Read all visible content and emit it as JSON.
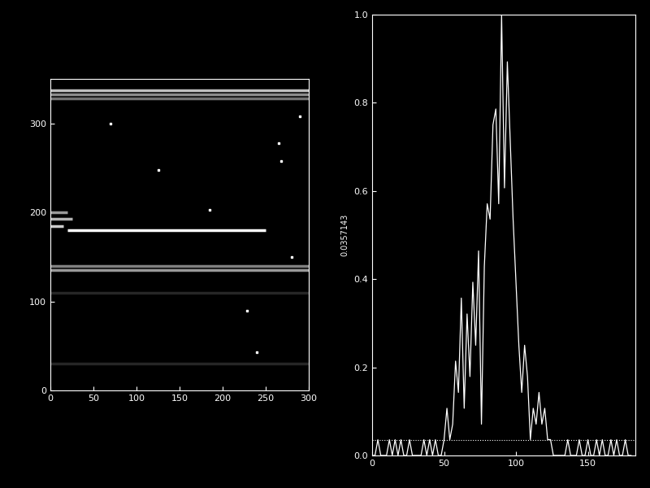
{
  "chart_data": [
    {
      "type": "image",
      "xlim": [
        0,
        300
      ],
      "xticks": [
        0,
        50,
        100,
        150,
        200,
        250,
        300
      ],
      "ylim": [
        0,
        350
      ],
      "yticks": [
        0,
        100,
        200,
        300
      ],
      "bands": [
        {
          "y": 337,
          "x0": 0,
          "x1": 300,
          "intensity": 0.75
        },
        {
          "y": 333,
          "x0": 0,
          "x1": 300,
          "intensity": 0.55
        },
        {
          "y": 328,
          "x0": 0,
          "x1": 300,
          "intensity": 0.45
        },
        {
          "y": 200,
          "x0": 0,
          "x1": 20,
          "intensity": 0.6
        },
        {
          "y": 193,
          "x0": 0,
          "x1": 25,
          "intensity": 0.7
        },
        {
          "y": 185,
          "x0": 0,
          "x1": 15,
          "intensity": 0.8
        },
        {
          "y": 180,
          "x0": 20,
          "x1": 250,
          "intensity": 1.0
        },
        {
          "y": 140,
          "x0": 0,
          "x1": 300,
          "intensity": 0.5
        },
        {
          "y": 135,
          "x0": 0,
          "x1": 300,
          "intensity": 0.6
        },
        {
          "y": 110,
          "x0": 0,
          "x1": 300,
          "intensity": 0.15
        },
        {
          "y": 30,
          "x0": 0,
          "x1": 300,
          "intensity": 0.15
        }
      ],
      "spots": [
        {
          "x": 265,
          "y": 278
        },
        {
          "x": 268,
          "y": 258
        },
        {
          "x": 125,
          "y": 248
        },
        {
          "x": 185,
          "y": 203
        },
        {
          "x": 228,
          "y": 90
        },
        {
          "x": 240,
          "y": 43
        },
        {
          "x": 70,
          "y": 300
        },
        {
          "x": 290,
          "y": 308
        },
        {
          "x": 280,
          "y": 150
        }
      ],
      "grid": false
    },
    {
      "type": "line",
      "y_label": "0.0357143",
      "x": [
        0,
        2,
        4,
        6,
        8,
        10,
        12,
        14,
        16,
        18,
        20,
        22,
        24,
        26,
        28,
        30,
        32,
        34,
        36,
        38,
        40,
        42,
        44,
        46,
        48,
        50,
        52,
        54,
        56,
        58,
        60,
        62,
        64,
        66,
        68,
        70,
        72,
        74,
        76,
        78,
        80,
        82,
        84,
        86,
        88,
        90,
        92,
        94,
        96,
        98,
        100,
        102,
        104,
        106,
        108,
        110,
        112,
        114,
        116,
        118,
        120,
        122,
        124,
        126,
        128,
        130,
        132,
        134,
        136,
        138,
        140,
        142,
        144,
        146,
        148,
        150,
        152,
        154,
        156,
        158,
        160,
        162,
        164,
        166,
        168,
        170,
        172,
        174,
        176,
        178,
        180
      ],
      "values": [
        0,
        0,
        0.0357,
        0,
        0,
        0,
        0.0357,
        0,
        0.0357,
        0,
        0.0357,
        0,
        0,
        0.0357,
        0,
        0,
        0,
        0,
        0.0357,
        0,
        0.0357,
        0,
        0.0357,
        0,
        0,
        0.0357,
        0.107,
        0.036,
        0.071,
        0.214,
        0.143,
        0.357,
        0.107,
        0.321,
        0.179,
        0.393,
        0.25,
        0.464,
        0.071,
        0.429,
        0.571,
        0.536,
        0.75,
        0.786,
        0.571,
        1.0,
        0.607,
        0.893,
        0.714,
        0.536,
        0.393,
        0.25,
        0.143,
        0.25,
        0.179,
        0.036,
        0.107,
        0.071,
        0.143,
        0.071,
        0.107,
        0.036,
        0.036,
        0,
        0,
        0,
        0,
        0,
        0.0357,
        0,
        0,
        0,
        0.0357,
        0,
        0,
        0.0357,
        0,
        0,
        0.0357,
        0,
        0.0357,
        0,
        0,
        0.0357,
        0,
        0.0357,
        0,
        0,
        0.0357,
        0,
        0
      ],
      "threshold": 0.0357143,
      "color": "#ffffff",
      "xlim": [
        0,
        183
      ],
      "xticks": [
        0,
        50,
        100,
        150
      ],
      "ylim": [
        0,
        1.0
      ],
      "yticks": [
        {
          "value": 0,
          "label": "0.0"
        },
        {
          "value": 0.2,
          "label": "0.2"
        },
        {
          "value": 0.4,
          "label": "0.4"
        },
        {
          "value": 0.6,
          "label": "0.6"
        },
        {
          "value": 0.8,
          "label": "0.8"
        },
        {
          "value": 1.0,
          "label": "1.0"
        }
      ],
      "grid": false
    }
  ]
}
